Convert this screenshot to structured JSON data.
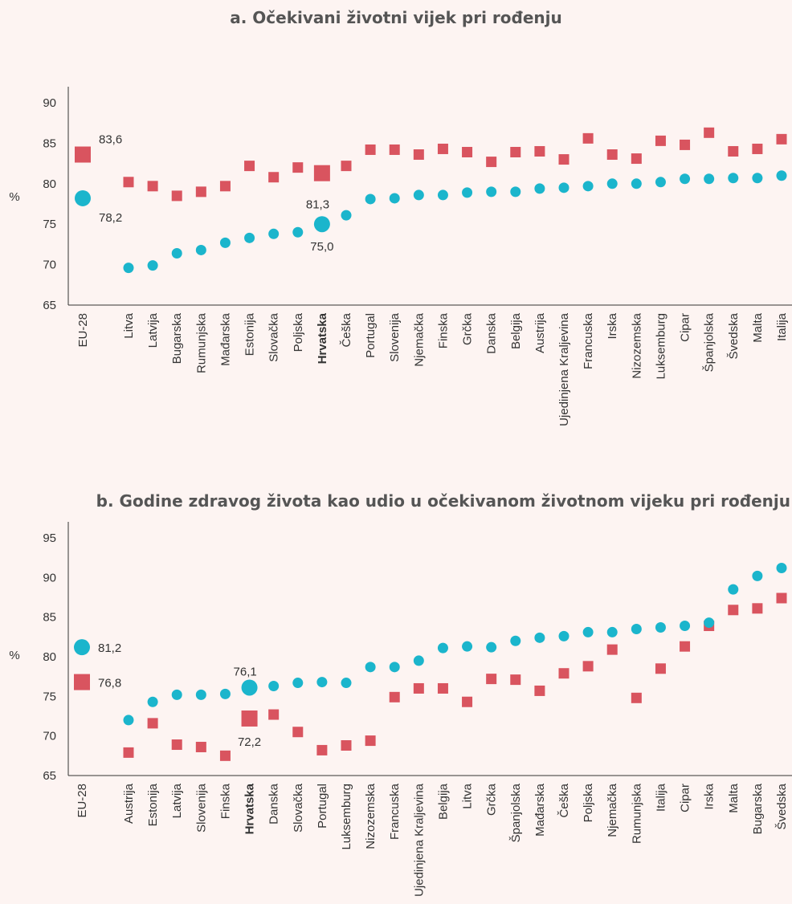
{
  "colors": {
    "square": "#d9545f",
    "circle": "#1bb5cc",
    "background": "#fdf4f2"
  },
  "chart_data": [
    {
      "type": "scatter",
      "title": "a. Očekivani životni vijek pri rođenju",
      "ylabel": "%",
      "ylim": [
        65,
        90
      ],
      "yticks": [
        "65",
        "70",
        "75",
        "80",
        "85",
        "90"
      ],
      "highlight": "Hrvatska",
      "categories": [
        "EU-28",
        "Litva",
        "Latvija",
        "Bugarska",
        "Rumunjska",
        "Mađarska",
        "Estonija",
        "Slovačka",
        "Poljska",
        "Hrvatska",
        "Češka",
        "Portugal",
        "Slovenija",
        "Njemačka",
        "Finska",
        "Grčka",
        "Danska",
        "Belgija",
        "Austrija",
        "Ujedinjena Kraljevina",
        "Francuska",
        "Irska",
        "Nizozemska",
        "Luksemburg",
        "Cipar",
        "Španjolska",
        "Švedska",
        "Malta",
        "Italija"
      ],
      "series": [
        {
          "marker": "square",
          "values": [
            83.6,
            80.2,
            79.7,
            78.5,
            79.0,
            79.7,
            82.2,
            80.8,
            82.0,
            81.3,
            82.2,
            84.2,
            84.2,
            83.6,
            84.3,
            83.9,
            82.7,
            83.9,
            84.0,
            83.0,
            85.6,
            83.6,
            83.1,
            85.3,
            84.8,
            86.3,
            84.0,
            84.3,
            85.5
          ]
        },
        {
          "marker": "circle",
          "values": [
            78.2,
            69.6,
            69.9,
            71.4,
            71.8,
            72.7,
            73.3,
            73.8,
            74.0,
            75.0,
            76.1,
            78.1,
            78.2,
            78.6,
            78.6,
            78.9,
            79.0,
            79.0,
            79.4,
            79.5,
            79.7,
            80.0,
            80.0,
            80.2,
            80.6,
            80.6,
            80.7,
            80.7,
            81.0
          ]
        }
      ],
      "annotations": [
        {
          "category": "EU-28",
          "series": "square",
          "text": "83,6"
        },
        {
          "category": "EU-28",
          "series": "circle",
          "text": "78,2"
        },
        {
          "category": "Hrvatska",
          "series": "square",
          "text": "81,3"
        },
        {
          "category": "Hrvatska",
          "series": "circle",
          "text": "75,0"
        }
      ]
    },
    {
      "type": "scatter",
      "title": "b. Godine zdravog života kao udio u očekivanom životnom vijeku pri rođenju",
      "ylabel": "%",
      "ylim": [
        65,
        95
      ],
      "yticks": [
        "65",
        "70",
        "75",
        "80",
        "85",
        "90",
        "95"
      ],
      "highlight": "Hrvatska",
      "categories": [
        "EU-28",
        "Austrija",
        "Estonija",
        "Latvija",
        "Slovenija",
        "Finska",
        "Hrvatska",
        "Danska",
        "Slovačka",
        "Portugal",
        "Luksemburg",
        "Nizozemska",
        "Francuska",
        "Ujedinjena Kraljevina",
        "Belgija",
        "Litva",
        "Grčka",
        "Španjolska",
        "Mađarska",
        "Češka",
        "Poljska",
        "Njemačka",
        "Rumunjska",
        "Italija",
        "Cipar",
        "Irska",
        "Malta",
        "Bugarska",
        "Švedska"
      ],
      "series": [
        {
          "marker": "square",
          "values": [
            76.8,
            67.9,
            71.6,
            68.9,
            68.6,
            67.5,
            72.2,
            72.7,
            70.5,
            68.2,
            68.8,
            69.4,
            74.9,
            76.0,
            76.0,
            74.3,
            77.2,
            77.1,
            75.7,
            77.9,
            78.8,
            80.9,
            74.8,
            78.5,
            81.3,
            83.9,
            85.9,
            86.1,
            87.4
          ]
        },
        {
          "marker": "circle",
          "values": [
            81.2,
            72.0,
            74.3,
            75.2,
            75.2,
            75.3,
            76.1,
            76.3,
            76.7,
            76.8,
            76.7,
            78.7,
            78.7,
            79.5,
            81.1,
            81.3,
            81.2,
            82.0,
            82.4,
            82.6,
            83.1,
            83.1,
            83.5,
            83.7,
            83.9,
            84.3,
            88.5,
            90.2,
            91.2
          ]
        }
      ],
      "annotations": [
        {
          "category": "EU-28",
          "series": "circle",
          "text": "81,2"
        },
        {
          "category": "EU-28",
          "series": "square",
          "text": "76,8"
        },
        {
          "category": "Hrvatska",
          "series": "circle",
          "text": "76,1"
        },
        {
          "category": "Hrvatska",
          "series": "square",
          "text": "72,2"
        }
      ]
    }
  ]
}
